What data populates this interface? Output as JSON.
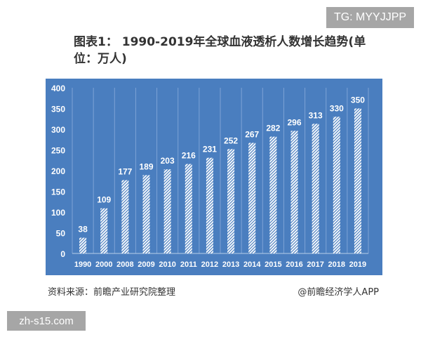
{
  "watermark_top": "TG: MYYJJPP",
  "watermark_bottom": "zh-s15.com",
  "source": "资料来源：前瞻产业研究院整理",
  "publisher": "@前瞻经济学人APP",
  "chart_data": {
    "type": "bar",
    "title": "图表1： 1990-2019年全球血液透析人数增长趋势(单位：万人)",
    "categories": [
      "1990",
      "2000",
      "2008",
      "2009",
      "2010",
      "2011",
      "2012",
      "2013",
      "2014",
      "2015",
      "2016",
      "2017",
      "2018",
      "2019"
    ],
    "values": [
      38,
      109,
      177,
      189,
      203,
      216,
      231,
      252,
      267,
      282,
      296,
      313,
      330,
      350
    ],
    "ylim": [
      0,
      400
    ],
    "yticks": [
      0,
      50,
      100,
      150,
      200,
      250,
      300,
      350,
      400
    ],
    "xlabel": "",
    "ylabel": "",
    "grid": "vertical",
    "background_color": "#4a7ebf",
    "bar_color": "#ffffff",
    "bar_pattern": "diagonal-hatch"
  }
}
